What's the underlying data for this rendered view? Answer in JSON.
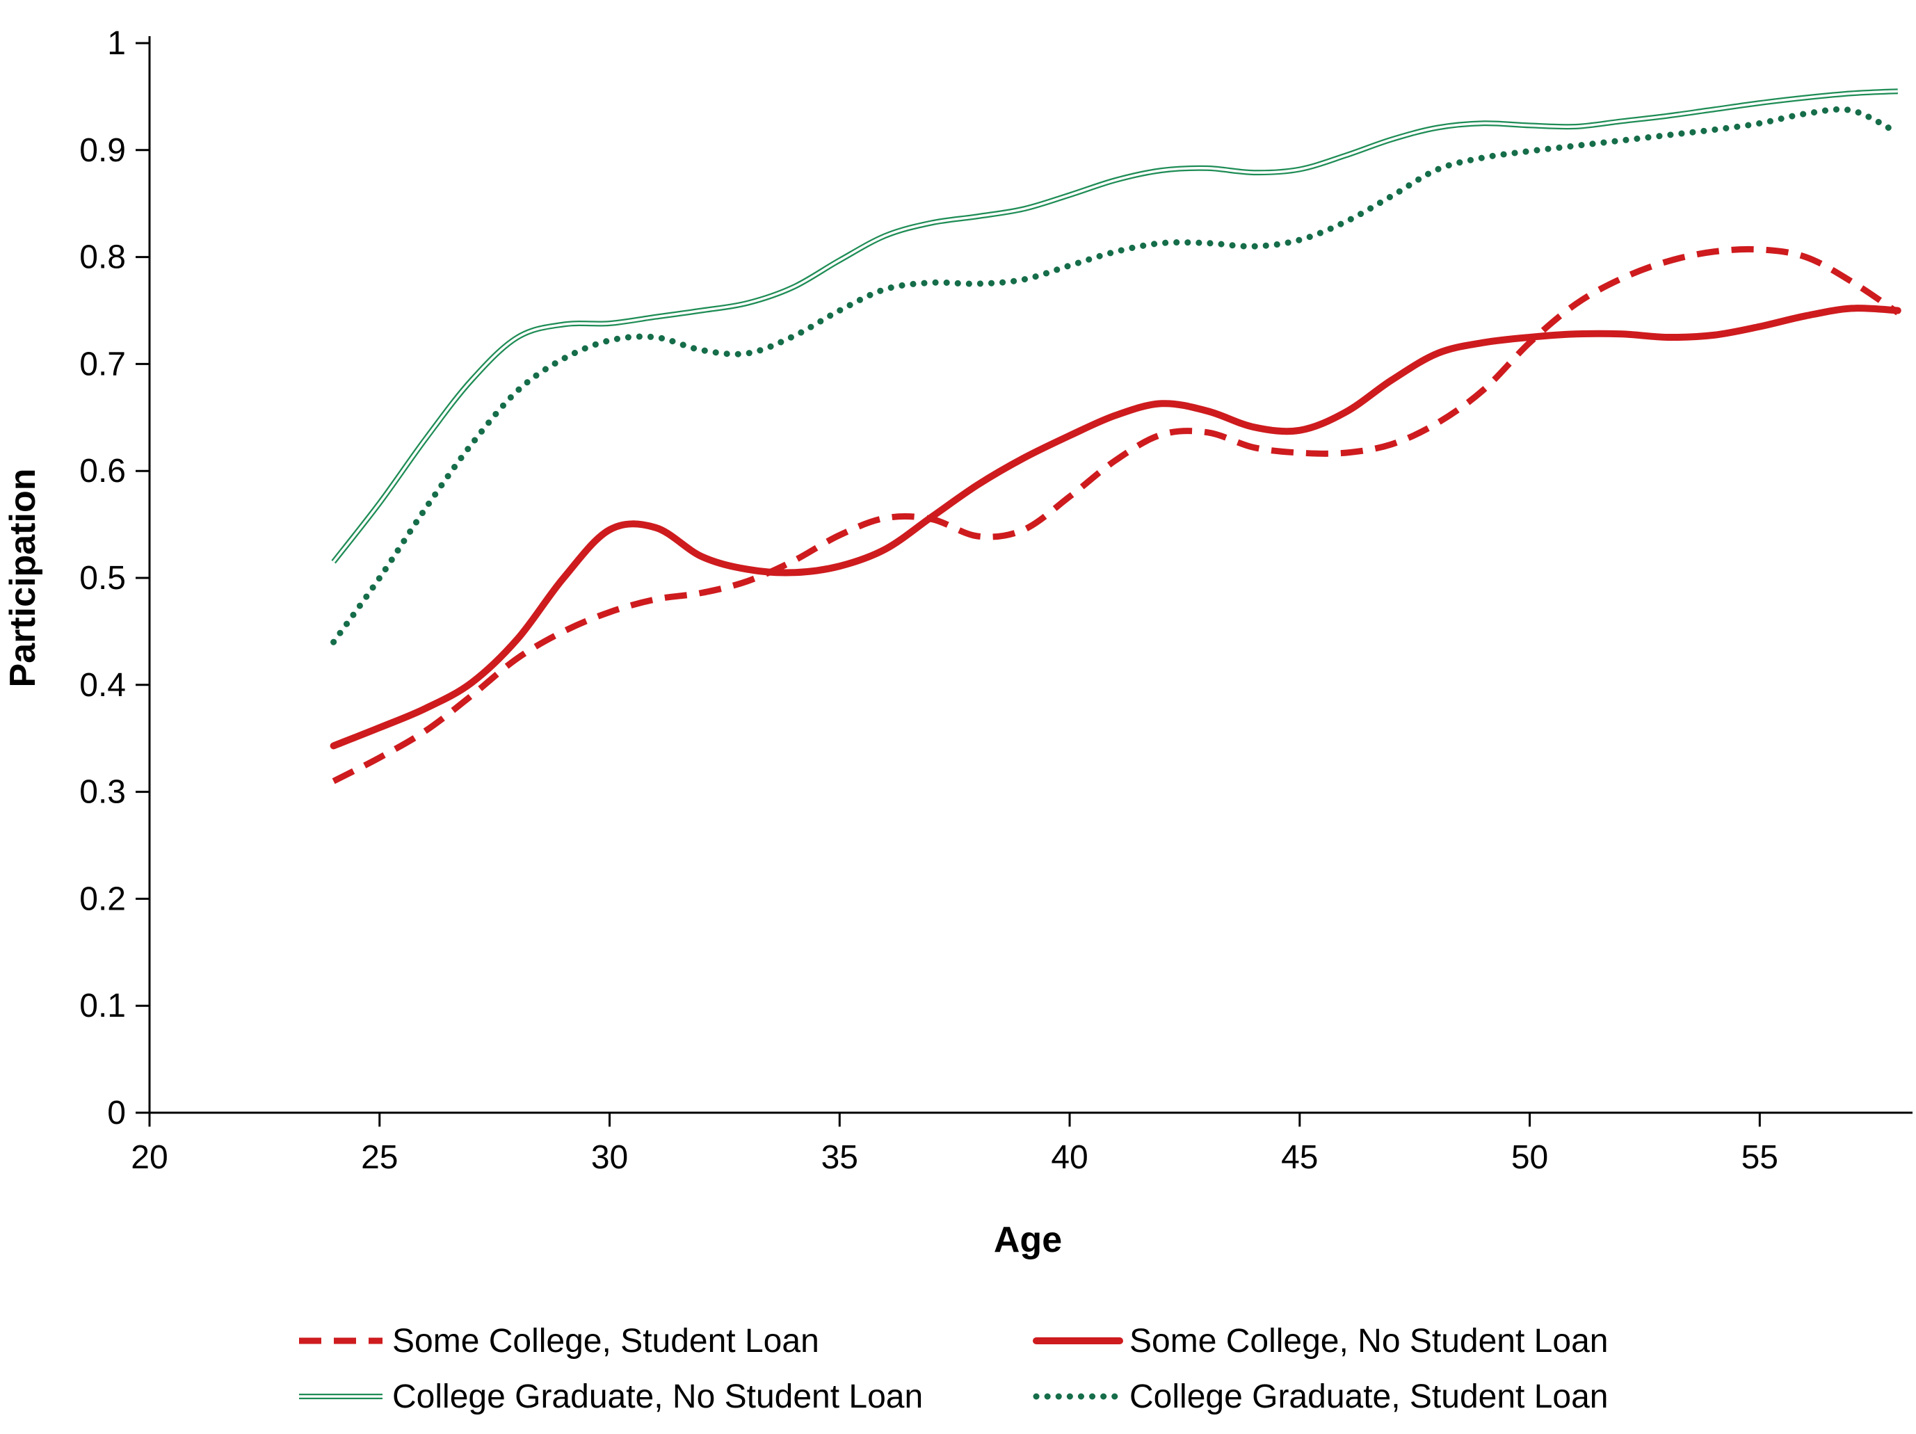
{
  "figure": {
    "background": "#ffffff",
    "axis_color": "#000000",
    "text_color": "#000000"
  },
  "chart_data": {
    "type": "line",
    "title": "",
    "xlabel": "Age",
    "ylabel": "Participation",
    "xlim": [
      20,
      58.2
    ],
    "ylim": [
      0,
      1
    ],
    "x_ticks": [
      20,
      25,
      30,
      35,
      40,
      45,
      50,
      55
    ],
    "y_ticks": [
      0,
      0.1,
      0.2,
      0.3,
      0.4,
      0.5,
      0.6,
      0.7,
      0.8,
      0.9,
      1
    ],
    "grid": false,
    "legend_position": "bottom",
    "x": [
      24,
      25,
      26,
      27,
      28,
      29,
      30,
      31,
      32,
      33,
      34,
      35,
      36,
      37,
      38,
      39,
      40,
      41,
      42,
      43,
      44,
      45,
      46,
      47,
      48,
      49,
      50,
      51,
      52,
      53,
      54,
      55,
      56,
      57,
      58
    ],
    "series": [
      {
        "name": "Some College, Student Loan",
        "color": "#CE1B1E",
        "style": "dashed",
        "values": [
          0.31,
          0.332,
          0.357,
          0.39,
          0.425,
          0.45,
          0.468,
          0.48,
          0.486,
          0.497,
          0.516,
          0.54,
          0.556,
          0.555,
          0.539,
          0.545,
          0.576,
          0.61,
          0.634,
          0.636,
          0.622,
          0.617,
          0.617,
          0.625,
          0.645,
          0.676,
          0.72,
          0.756,
          0.78,
          0.796,
          0.805,
          0.807,
          0.8,
          0.777,
          0.748
        ]
      },
      {
        "name": "Some College, No Student Loan",
        "color": "#CE1B1E",
        "style": "solid",
        "values": [
          0.343,
          0.36,
          0.378,
          0.402,
          0.443,
          0.5,
          0.545,
          0.547,
          0.52,
          0.508,
          0.505,
          0.511,
          0.527,
          0.557,
          0.587,
          0.612,
          0.633,
          0.652,
          0.663,
          0.656,
          0.641,
          0.638,
          0.655,
          0.685,
          0.71,
          0.72,
          0.725,
          0.728,
          0.728,
          0.725,
          0.727,
          0.735,
          0.745,
          0.752,
          0.75
        ]
      },
      {
        "name": "College Graduate, No Student Loan",
        "color": "#1E8C55",
        "style": "double",
        "values": [
          0.515,
          0.57,
          0.63,
          0.685,
          0.725,
          0.737,
          0.738,
          0.744,
          0.75,
          0.757,
          0.772,
          0.797,
          0.82,
          0.832,
          0.838,
          0.845,
          0.858,
          0.872,
          0.881,
          0.883,
          0.879,
          0.882,
          0.895,
          0.91,
          0.921,
          0.925,
          0.923,
          0.922,
          0.927,
          0.932,
          0.938,
          0.944,
          0.949,
          0.953,
          0.955
        ]
      },
      {
        "name": "College Graduate, Student Loan",
        "color": "#156D49",
        "style": "dotted",
        "values": [
          0.44,
          0.5,
          0.565,
          0.625,
          0.675,
          0.705,
          0.722,
          0.725,
          0.713,
          0.71,
          0.726,
          0.75,
          0.77,
          0.776,
          0.775,
          0.779,
          0.792,
          0.805,
          0.813,
          0.813,
          0.81,
          0.816,
          0.833,
          0.857,
          0.882,
          0.893,
          0.899,
          0.904,
          0.909,
          0.914,
          0.919,
          0.925,
          0.934,
          0.937,
          0.916
        ]
      }
    ],
    "legend_rows": [
      [
        0,
        1
      ],
      [
        2,
        3
      ]
    ]
  }
}
